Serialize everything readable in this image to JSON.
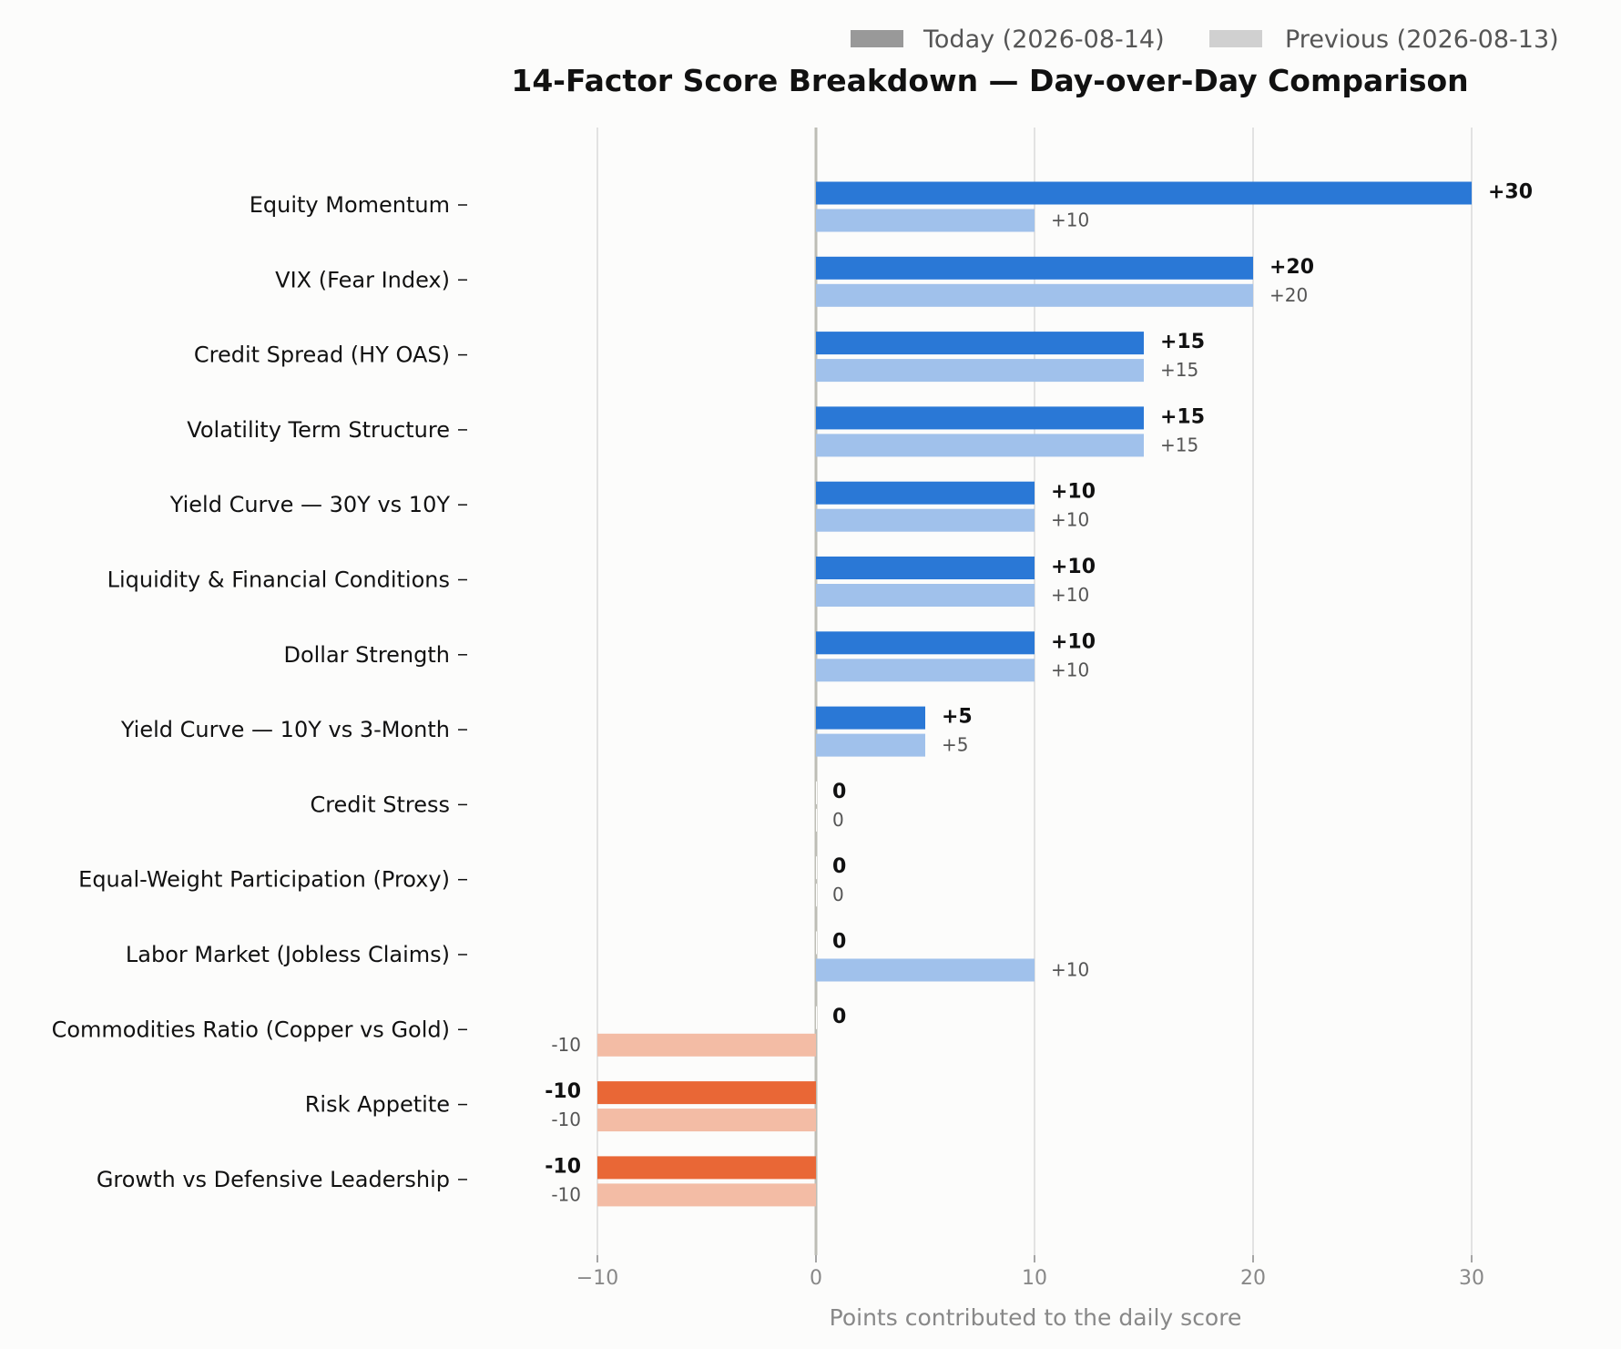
{
  "chart_data": {
    "type": "bar",
    "orientation": "horizontal",
    "title": "14-Factor Score Breakdown — Day-over-Day Comparison",
    "xlabel": "Points contributed to the daily score",
    "ylabel": "",
    "xlim": [
      -10,
      30
    ],
    "xticks": [
      -10,
      0,
      10,
      20,
      30
    ],
    "xtick_labels": [
      "−10",
      "0",
      "10",
      "20",
      "30"
    ],
    "grid": "vertical",
    "legend_position": "top-right",
    "categories": [
      "Equity Momentum",
      "VIX (Fear Index)",
      "Credit Spread (HY OAS)",
      "Volatility Term Structure",
      "Yield Curve — 30Y vs 10Y",
      "Liquidity & Financial Conditions",
      "Dollar Strength",
      "Yield Curve — 10Y vs 3-Month",
      "Credit Stress",
      "Equal-Weight Participation (Proxy)",
      "Labor Market (Jobless Claims)",
      "Commodities Ratio (Copper vs Gold)",
      "Risk Appetite",
      "Growth vs Defensive Leadership"
    ],
    "series": [
      {
        "name": "Today (2026-08-14)",
        "values": [
          30,
          20,
          15,
          15,
          10,
          10,
          10,
          5,
          0,
          0,
          0,
          0,
          -10,
          -10
        ],
        "labels": [
          "+30",
          "+20",
          "+15",
          "+15",
          "+10",
          "+10",
          "+10",
          "+5",
          "0",
          "0",
          "0",
          "0",
          "-10",
          "-10"
        ]
      },
      {
        "name": "Previous (2026-08-13)",
        "values": [
          10,
          20,
          15,
          15,
          10,
          10,
          10,
          5,
          0,
          0,
          10,
          -10,
          -10,
          -10
        ],
        "labels": [
          "+10",
          "+20",
          "+15",
          "+15",
          "+10",
          "+10",
          "+10",
          "+5",
          "0",
          "0",
          "+10",
          "-10",
          "-10",
          "-10"
        ]
      }
    ],
    "colors": {
      "today_positive": "#2a78d6",
      "today_negative": "#e96736",
      "previous_positive": "#a0c1eb",
      "previous_negative": "#f3bca5",
      "legend_today": "#999999",
      "legend_previous": "#d0d0d0",
      "gridline": "#d9d9d9",
      "zero_line": "#bdbdb5"
    }
  }
}
